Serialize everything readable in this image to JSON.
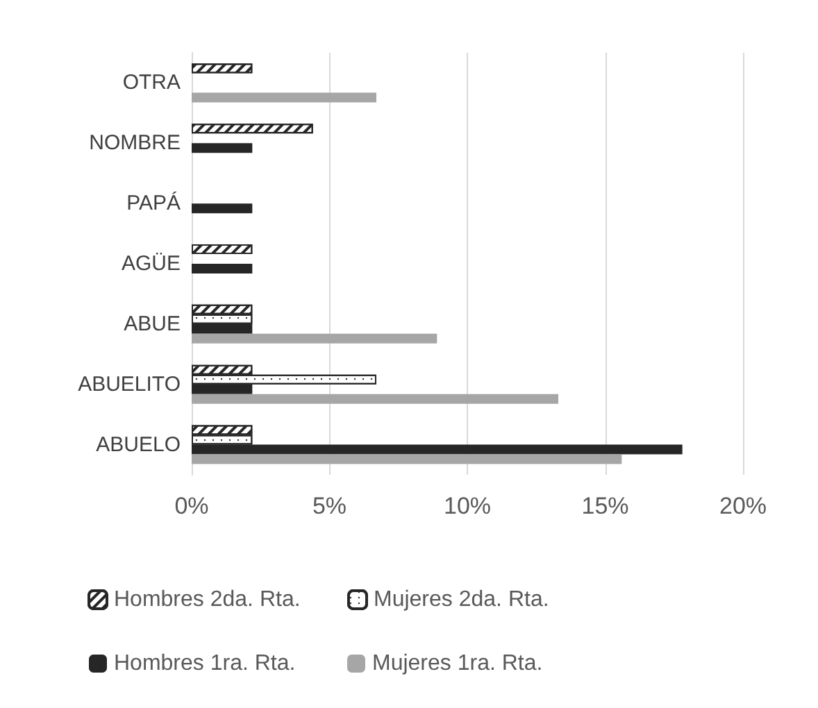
{
  "chart_data": {
    "type": "bar",
    "orientation": "horizontal",
    "categories": [
      "OTRA",
      "NOMBRE",
      "PAPÁ",
      "AGÜE",
      "ABUE",
      "ABUELITO",
      "ABUELO"
    ],
    "series": [
      {
        "name": "Hombres 2da. Rta.",
        "color": "#262626",
        "values": [
          2.2,
          4.4,
          null,
          2.2,
          2.2,
          2.2,
          2.2
        ]
      },
      {
        "name": "Mujeres 2da. Rta.",
        "color": "#262626",
        "values": [
          null,
          null,
          null,
          null,
          2.2,
          6.7,
          2.2
        ]
      },
      {
        "name": "Hombres 1ra. Rta.",
        "color": "#262626",
        "values": [
          null,
          2.2,
          2.2,
          2.2,
          2.2,
          2.2,
          17.8
        ]
      },
      {
        "name": "Mujeres 1ra. Rta.",
        "color": "#a6a6a6",
        "values": [
          6.7,
          null,
          null,
          null,
          8.9,
          13.3,
          15.6
        ]
      }
    ],
    "xlim": [
      0,
      20
    ],
    "xticks": [
      {
        "value": 0,
        "label": "0%"
      },
      {
        "value": 5,
        "label": "5%"
      },
      {
        "value": 10,
        "label": "10%"
      },
      {
        "value": 15,
        "label": "15%"
      },
      {
        "value": 20,
        "label": "20%"
      }
    ],
    "grid": "x",
    "legend": "bottom"
  }
}
